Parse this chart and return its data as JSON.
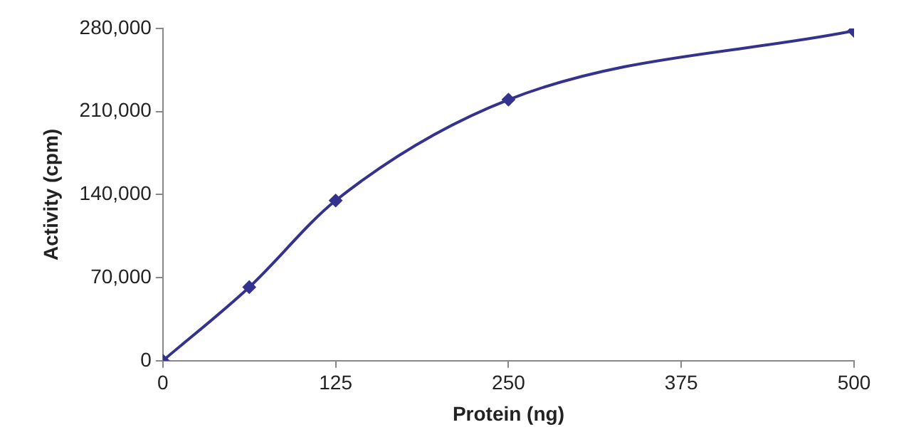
{
  "chart_data": {
    "type": "line",
    "xlabel": "Protein (ng)",
    "ylabel": "Activity (cpm)",
    "x": [
      0,
      62.5,
      125,
      250,
      500
    ],
    "series": [
      {
        "color": "#33338f",
        "values": [
          0,
          62000,
          135000,
          220000,
          278000
        ]
      }
    ],
    "xlim": [
      0,
      500
    ],
    "xticks": [
      0,
      125,
      250,
      375,
      500
    ],
    "ylim": [
      0,
      280000
    ],
    "yticks": [
      {
        "value": 0,
        "label": "0"
      },
      {
        "value": 70000,
        "label": "70,000"
      },
      {
        "value": 140000,
        "label": "140,000"
      },
      {
        "value": 210000,
        "label": "210,000"
      },
      {
        "value": 280000,
        "label": "280,000"
      }
    ],
    "grid": false,
    "legend": false,
    "marker": "diamond",
    "line_style": "solid"
  }
}
